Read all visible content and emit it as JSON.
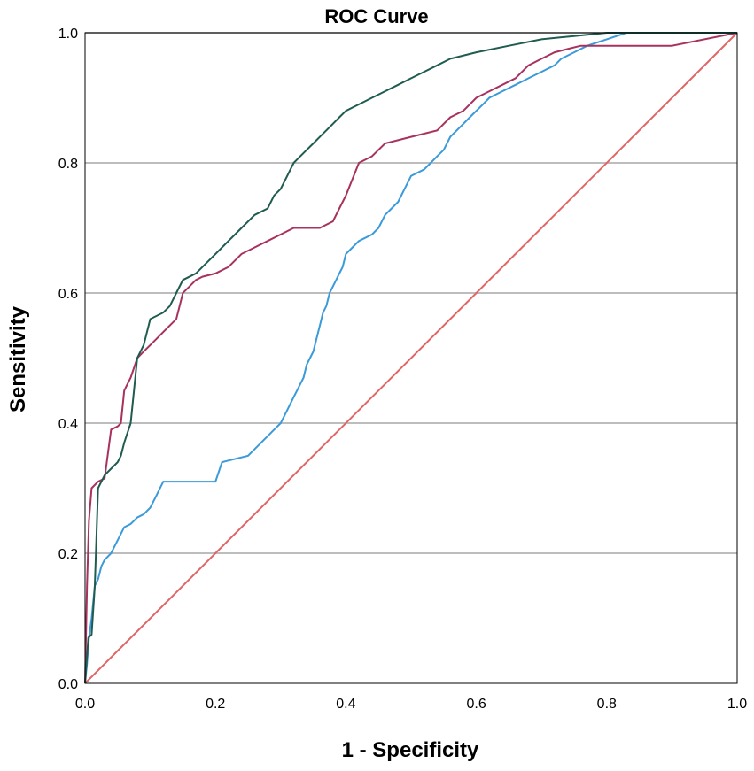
{
  "chart_data": {
    "type": "line",
    "title": "ROC Curve",
    "xlabel": "1 - Specificity",
    "ylabel": "Sensitivity",
    "xlim": [
      0,
      1
    ],
    "ylim": [
      0,
      1
    ],
    "grid": "horizontal",
    "x_ticks": [
      "0.0",
      "0.2",
      "0.4",
      "0.6",
      "0.8",
      "1.0"
    ],
    "y_ticks": [
      "0.0",
      "0.2",
      "0.4",
      "0.6",
      "0.8",
      "1.0"
    ],
    "series": [
      {
        "name": "Reference Line",
        "color": "#e06666",
        "x": [
          0,
          1
        ],
        "y": [
          0,
          1
        ]
      },
      {
        "name": "Blue curve",
        "color": "#3b9ad9",
        "x": [
          0,
          0.003,
          0.006,
          0.01,
          0.015,
          0.02,
          0.025,
          0.03,
          0.035,
          0.04,
          0.045,
          0.05,
          0.06,
          0.07,
          0.075,
          0.08,
          0.09,
          0.1,
          0.105,
          0.11,
          0.115,
          0.12,
          0.2,
          0.21,
          0.25,
          0.26,
          0.27,
          0.28,
          0.29,
          0.3,
          0.305,
          0.31,
          0.315,
          0.32,
          0.325,
          0.33,
          0.335,
          0.34,
          0.345,
          0.35,
          0.355,
          0.36,
          0.365,
          0.37,
          0.375,
          0.38,
          0.385,
          0.39,
          0.395,
          0.4,
          0.41,
          0.42,
          0.44,
          0.45,
          0.46,
          0.47,
          0.48,
          0.49,
          0.5,
          0.52,
          0.53,
          0.54,
          0.55,
          0.56,
          0.57,
          0.58,
          0.59,
          0.6,
          0.61,
          0.62,
          0.64,
          0.66,
          0.68,
          0.7,
          0.72,
          0.73,
          0.75,
          0.77,
          0.8,
          0.83,
          0.9,
          1.0
        ],
        "y": [
          0,
          0.03,
          0.07,
          0.1,
          0.15,
          0.16,
          0.18,
          0.19,
          0.195,
          0.2,
          0.21,
          0.22,
          0.24,
          0.245,
          0.25,
          0.255,
          0.26,
          0.27,
          0.28,
          0.29,
          0.3,
          0.31,
          0.31,
          0.34,
          0.35,
          0.36,
          0.37,
          0.38,
          0.39,
          0.4,
          0.41,
          0.42,
          0.43,
          0.44,
          0.45,
          0.46,
          0.47,
          0.49,
          0.5,
          0.51,
          0.53,
          0.55,
          0.57,
          0.58,
          0.6,
          0.61,
          0.62,
          0.63,
          0.64,
          0.66,
          0.67,
          0.68,
          0.69,
          0.7,
          0.72,
          0.73,
          0.74,
          0.76,
          0.78,
          0.79,
          0.8,
          0.81,
          0.82,
          0.84,
          0.85,
          0.86,
          0.87,
          0.88,
          0.89,
          0.9,
          0.91,
          0.92,
          0.93,
          0.94,
          0.95,
          0.96,
          0.97,
          0.98,
          0.99,
          1.0,
          1.0,
          1.0
        ]
      },
      {
        "name": "Crimson curve",
        "color": "#a8325e",
        "x": [
          0,
          0.003,
          0.006,
          0.01,
          0.02,
          0.03,
          0.04,
          0.05,
          0.055,
          0.06,
          0.065,
          0.07,
          0.08,
          0.09,
          0.1,
          0.11,
          0.12,
          0.13,
          0.14,
          0.15,
          0.16,
          0.17,
          0.18,
          0.2,
          0.22,
          0.24,
          0.26,
          0.28,
          0.3,
          0.32,
          0.34,
          0.36,
          0.38,
          0.39,
          0.4,
          0.42,
          0.44,
          0.46,
          0.5,
          0.54,
          0.56,
          0.58,
          0.6,
          0.62,
          0.64,
          0.66,
          0.68,
          0.7,
          0.72,
          0.74,
          0.76,
          0.8,
          0.9,
          1.0
        ],
        "y": [
          0,
          0.15,
          0.25,
          0.3,
          0.31,
          0.315,
          0.39,
          0.395,
          0.4,
          0.45,
          0.46,
          0.47,
          0.5,
          0.51,
          0.52,
          0.53,
          0.54,
          0.55,
          0.56,
          0.6,
          0.61,
          0.62,
          0.625,
          0.63,
          0.64,
          0.66,
          0.67,
          0.68,
          0.69,
          0.7,
          0.7,
          0.7,
          0.71,
          0.73,
          0.75,
          0.8,
          0.81,
          0.83,
          0.84,
          0.85,
          0.87,
          0.88,
          0.9,
          0.91,
          0.92,
          0.93,
          0.95,
          0.96,
          0.97,
          0.975,
          0.98,
          0.98,
          0.98,
          1.0
        ]
      },
      {
        "name": "Dark green curve",
        "color": "#1f5c4f",
        "x": [
          0,
          0.005,
          0.01,
          0.015,
          0.02,
          0.025,
          0.03,
          0.04,
          0.05,
          0.055,
          0.06,
          0.07,
          0.075,
          0.08,
          0.09,
          0.1,
          0.12,
          0.13,
          0.14,
          0.15,
          0.17,
          0.18,
          0.19,
          0.2,
          0.22,
          0.24,
          0.26,
          0.28,
          0.29,
          0.3,
          0.31,
          0.32,
          0.33,
          0.34,
          0.35,
          0.36,
          0.37,
          0.38,
          0.39,
          0.4,
          0.41,
          0.42,
          0.44,
          0.46,
          0.48,
          0.5,
          0.52,
          0.54,
          0.56,
          0.6,
          0.65,
          0.7,
          0.75,
          0.8,
          1.0
        ],
        "y": [
          0,
          0.07,
          0.075,
          0.15,
          0.3,
          0.31,
          0.32,
          0.33,
          0.34,
          0.35,
          0.37,
          0.4,
          0.45,
          0.5,
          0.52,
          0.56,
          0.57,
          0.58,
          0.6,
          0.62,
          0.63,
          0.64,
          0.65,
          0.66,
          0.68,
          0.7,
          0.72,
          0.73,
          0.75,
          0.76,
          0.78,
          0.8,
          0.81,
          0.82,
          0.83,
          0.84,
          0.85,
          0.86,
          0.87,
          0.88,
          0.885,
          0.89,
          0.9,
          0.91,
          0.92,
          0.93,
          0.94,
          0.95,
          0.96,
          0.97,
          0.98,
          0.99,
          0.995,
          1.0,
          1.0
        ]
      }
    ]
  }
}
